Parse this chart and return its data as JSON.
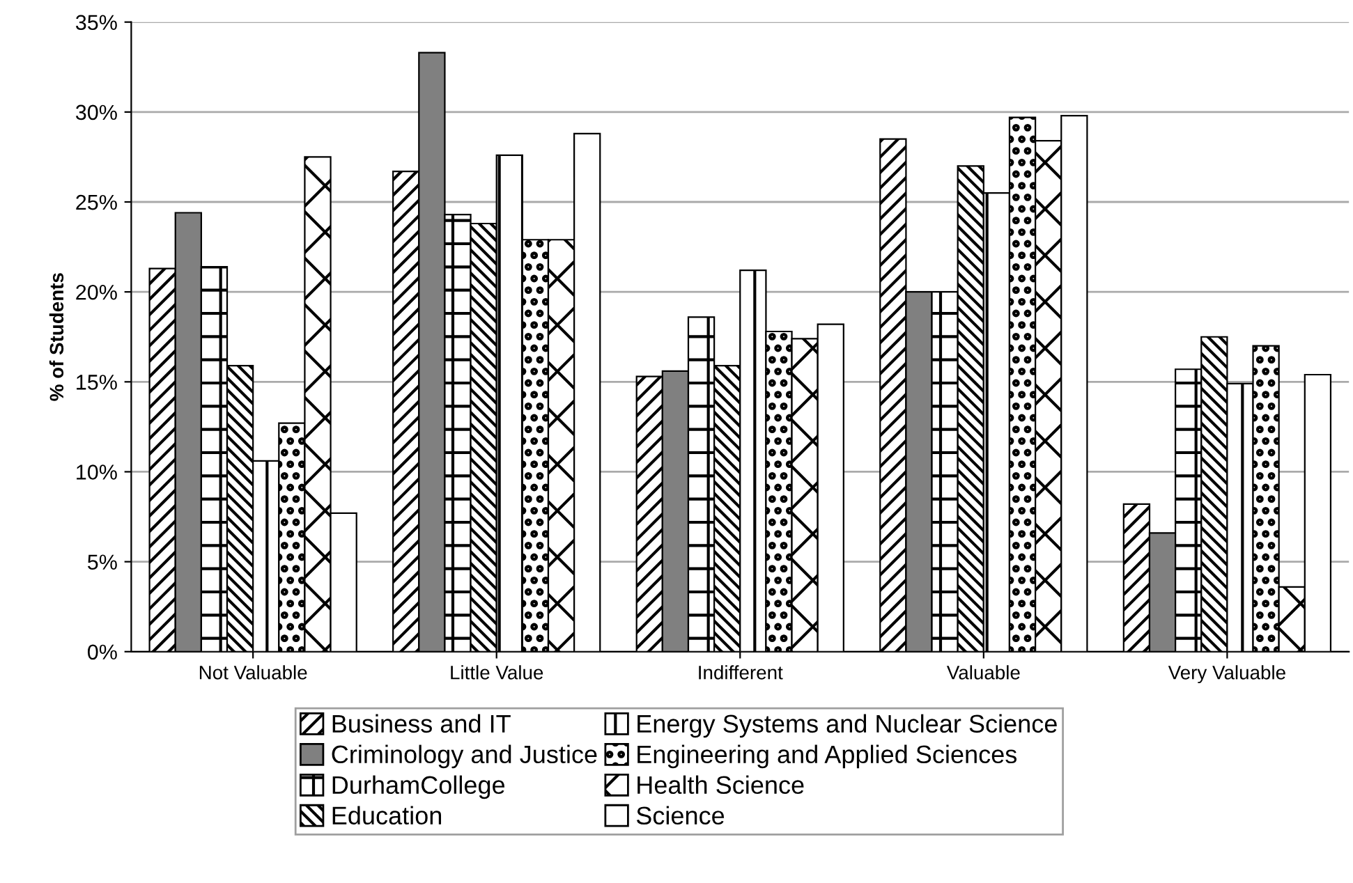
{
  "chart_data": {
    "type": "bar",
    "ylabel": "% of Students",
    "categories": [
      "Not Valuable",
      "Little Value",
      "Indifferent",
      "Valuable",
      "Very Valuable"
    ],
    "series": [
      {
        "name": "Business and IT",
        "color": "#000000",
        "values": [
          21.3,
          26.7,
          15.3,
          28.5,
          8.2
        ]
      },
      {
        "name": "Criminology and Justice",
        "color": "#808080",
        "values": [
          24.4,
          33.3,
          15.6,
          20.0,
          6.6
        ]
      },
      {
        "name": "DurhamCollege",
        "color": "#000000",
        "values": [
          21.4,
          24.3,
          18.6,
          20.0,
          15.7
        ]
      },
      {
        "name": "Education",
        "color": "#000000",
        "values": [
          15.9,
          23.8,
          15.9,
          27.0,
          17.5
        ]
      },
      {
        "name": "Energy Systems and Nuclear Science",
        "color": "#000000",
        "values": [
          10.6,
          27.6,
          21.2,
          25.5,
          14.9
        ]
      },
      {
        "name": "Engineering and Applied Sciences",
        "color": "#000000",
        "values": [
          12.7,
          22.9,
          17.8,
          29.7,
          17.0
        ]
      },
      {
        "name": "Health Science",
        "color": "#000000",
        "values": [
          27.5,
          22.9,
          17.4,
          28.4,
          3.6
        ]
      },
      {
        "name": "Science",
        "color": "#000000",
        "values": [
          7.7,
          28.8,
          18.2,
          29.8,
          15.4
        ]
      }
    ],
    "ylim": [
      0,
      35
    ],
    "yticks": [
      {
        "value": 0,
        "label": "0%"
      },
      {
        "value": 5,
        "label": "5%"
      },
      {
        "value": 10,
        "label": "10%"
      },
      {
        "value": 15,
        "label": "15%"
      },
      {
        "value": 20,
        "label": "20%"
      },
      {
        "value": 25,
        "label": "25%"
      },
      {
        "value": 30,
        "label": "30%"
      },
      {
        "value": 35,
        "label": "35%"
      }
    ],
    "grid": "y",
    "legend": "bottom"
  }
}
